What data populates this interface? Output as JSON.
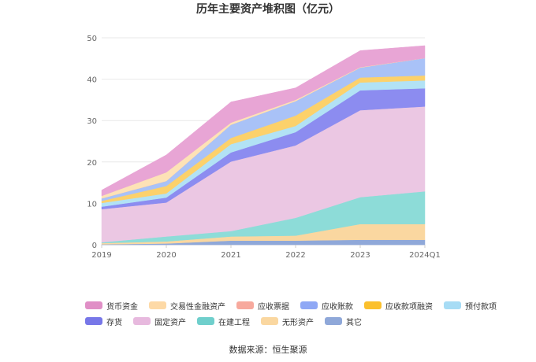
{
  "chart_data": {
    "type": "area",
    "stacked": true,
    "title": "历年主要资产堆积图（亿元）",
    "categories": [
      "2019",
      "2020",
      "2021",
      "2022",
      "2023",
      "2024Q1"
    ],
    "ylim": [
      0,
      50
    ],
    "yticks": [
      "0",
      "10",
      "20",
      "30",
      "40",
      "50"
    ],
    "grid": true,
    "legend_position": "bottom",
    "series": [
      {
        "name": "其它",
        "color": "#8fa8d9",
        "values": [
          0.1,
          0.3,
          1.0,
          1.0,
          1.2,
          1.2
        ]
      },
      {
        "name": "无形资产",
        "color": "#fad7a0",
        "values": [
          0.3,
          0.5,
          1.0,
          1.2,
          3.8,
          3.8
        ]
      },
      {
        "name": "在建工程",
        "color": "#8ddcd8",
        "values": [
          0.2,
          1.2,
          1.3,
          4.3,
          6.5,
          7.9
        ]
      },
      {
        "name": "固定资产",
        "color": "#ebc7e3",
        "values": [
          8.0,
          8.2,
          16.8,
          17.5,
          21.0,
          20.5
        ]
      },
      {
        "name": "存货",
        "color": "#8c8cf0",
        "values": [
          0.6,
          1.2,
          2.2,
          3.2,
          4.8,
          4.4
        ]
      },
      {
        "name": "预付款项",
        "color": "#b2e2f5",
        "values": [
          0.9,
          1.0,
          2.0,
          1.5,
          1.9,
          1.9
        ]
      },
      {
        "name": "应收款项融资",
        "color": "#fcd16b",
        "values": [
          0.5,
          1.8,
          1.5,
          2.5,
          1.2,
          1.2
        ]
      },
      {
        "name": "应收账款",
        "color": "#a9c2f7",
        "values": [
          0.6,
          1.2,
          3.2,
          3.5,
          2.4,
          4.2
        ]
      },
      {
        "name": "应收票据",
        "color": "#f7a99d",
        "values": [
          0.0,
          0.0,
          0.0,
          0.0,
          0.0,
          0.0
        ]
      },
      {
        "name": "交易性金融资产",
        "color": "#fde2b6",
        "values": [
          0.6,
          2.1,
          0.5,
          0.3,
          0.1,
          0.0
        ]
      },
      {
        "name": "货币资金",
        "color": "#e8a5d5",
        "values": [
          1.4,
          4.2,
          5.0,
          2.9,
          4.0,
          3.0
        ]
      }
    ]
  },
  "legend": {
    "rows": [
      [
        {
          "label": "货币资金",
          "color": "#e08fc6"
        },
        {
          "label": "交易性金融资产",
          "color": "#fdd9a6"
        },
        {
          "label": "应收票据",
          "color": "#f7a99d"
        },
        {
          "label": "应收账款",
          "color": "#8fa8f5"
        },
        {
          "label": "应收款项融资",
          "color": "#fbc02d"
        },
        {
          "label": "预付款项",
          "color": "#a7dcf5"
        }
      ],
      [
        {
          "label": "存货",
          "color": "#7777e8"
        },
        {
          "label": "固定资产",
          "color": "#e7b9de"
        },
        {
          "label": "在建工程",
          "color": "#6fcfcc"
        },
        {
          "label": "无形资产",
          "color": "#fad7a0"
        },
        {
          "label": "其它",
          "color": "#8fa8d9"
        }
      ]
    ]
  },
  "source": "数据来源：恒生聚源"
}
